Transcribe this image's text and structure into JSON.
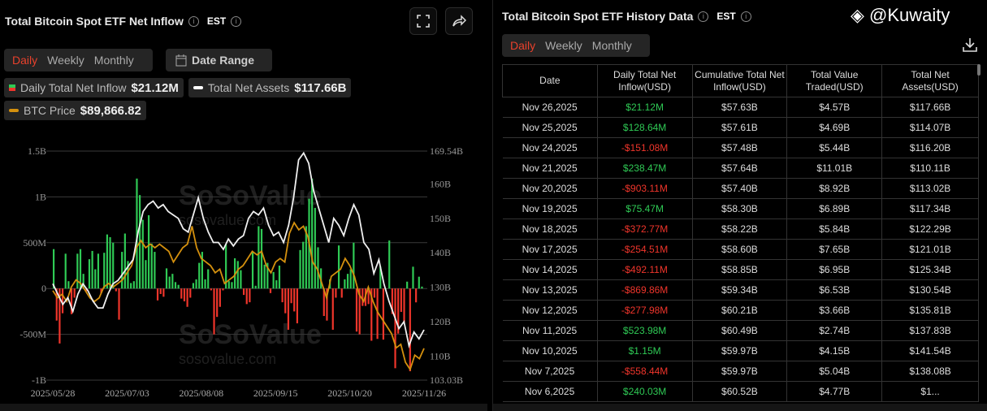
{
  "left": {
    "title": "Total Bitcoin Spot ETF Net Inflow",
    "tz": "EST",
    "tabs": [
      "Daily",
      "Weekly",
      "Monthly"
    ],
    "date_range": "Date Range",
    "legend": {
      "inflow_label": "Daily Total Net Inflow",
      "inflow_value": "$21.12M",
      "assets_label": "Total Net Assets",
      "assets_value": "$117.66B",
      "btc_label": "BTC Price",
      "btc_value": "$89,866.82"
    },
    "watermark": "SoSoValue",
    "watermark_url": "sosovalue.com"
  },
  "chart_data": {
    "type": "bar+line",
    "x_ticks": [
      "2025/05/28",
      "2025/07/03",
      "2025/08/08",
      "2025/09/15",
      "2025/10/20",
      "2025/11/26"
    ],
    "left_ticks": [
      "1.5B",
      "1B",
      "500M",
      "0",
      "-500M",
      "-1B"
    ],
    "right_ticks": [
      "169.54B",
      "160B",
      "150B",
      "140B",
      "130B",
      "120B",
      "110B",
      "103.03B"
    ],
    "ylim_left_millions": [
      -1000,
      1500
    ],
    "ylim_right_billions": [
      103.03,
      169.54
    ],
    "btc_range_thousands": [
      81,
      145
    ],
    "colors": {
      "pos": "#2fca55",
      "neg": "#f0352b",
      "assets": "#f0f0f0",
      "btc": "#d4900e"
    },
    "inflow_millions": [
      430,
      -350,
      -600,
      -270,
      380,
      80,
      -280,
      -100,
      380,
      430,
      160,
      -30,
      320,
      410,
      210,
      380,
      -50,
      390,
      590,
      560,
      500,
      -30,
      -340,
      400,
      600,
      300,
      60,
      80,
      1200,
      1020,
      750,
      310,
      800,
      490,
      400,
      -130,
      -60,
      -90,
      220,
      130,
      160,
      70,
      40,
      -110,
      -140,
      -200,
      -100,
      60,
      100,
      280,
      400,
      100,
      210,
      -20,
      -500,
      -310,
      -200,
      -20,
      480,
      80,
      70,
      330,
      300,
      200,
      -70,
      -170,
      -150,
      400,
      30,
      680,
      650,
      260,
      280,
      -50,
      180,
      90,
      250,
      -150,
      -270,
      -450,
      -160,
      -250,
      -380,
      420,
      510,
      680,
      980,
      1200,
      880,
      450,
      220,
      -300,
      -350,
      100,
      -450,
      -100,
      470,
      -100,
      100,
      160,
      210,
      500,
      -470,
      -500,
      -190,
      -190,
      -170,
      -570,
      -100,
      -550,
      240,
      -558,
      1.15,
      524,
      -278,
      -870,
      -492,
      -255,
      -373,
      75,
      -903,
      238,
      -151,
      129,
      21
    ],
    "total_net_assets_billions": [
      131,
      128,
      125,
      127,
      123,
      128,
      131,
      129,
      126,
      124,
      124,
      128,
      131,
      132,
      134,
      136,
      138,
      146,
      152,
      154,
      155,
      153,
      154,
      152,
      151,
      150,
      147,
      146,
      151,
      156,
      150,
      146,
      143,
      143,
      141,
      144,
      142,
      144,
      145,
      150,
      152,
      151,
      153,
      148,
      145,
      146,
      143,
      148,
      156,
      167,
      169,
      166,
      158,
      153,
      148,
      143,
      150,
      148,
      145,
      150,
      154,
      151,
      143,
      141,
      134,
      138,
      131,
      126,
      122,
      118,
      120,
      113,
      117,
      115,
      117.66
    ],
    "btc_price_thousands": [
      106,
      104,
      105,
      103,
      107,
      109,
      108,
      106,
      104,
      103,
      104,
      107,
      108,
      107,
      108,
      109,
      111,
      113,
      118,
      120,
      118,
      119,
      118,
      119,
      118,
      117,
      114,
      116,
      118,
      119,
      124,
      118,
      115,
      114,
      113,
      111,
      112,
      108,
      109,
      110,
      112,
      113,
      115,
      117,
      116,
      117,
      113,
      111,
      114,
      115,
      114,
      122,
      125,
      123,
      124,
      121,
      114,
      112,
      108,
      104,
      110,
      111,
      112,
      115,
      113,
      110,
      105,
      103,
      107,
      103,
      100,
      98,
      96,
      94,
      90,
      91,
      86,
      84,
      88,
      87,
      89.87
    ]
  },
  "right": {
    "title": "Total Bitcoin Spot ETF History Data",
    "tz": "EST",
    "tabs": [
      "Daily",
      "Weekly",
      "Monthly"
    ],
    "headers": [
      "Date",
      "Daily Total Net Inflow(USD)",
      "Cumulative Total Net Inflow(USD)",
      "Total Value Traded(USD)",
      "Total Net Assets(USD)"
    ],
    "rows": [
      [
        "Nov 26,2025",
        "$21.12M",
        "$57.63B",
        "$4.57B",
        "$117.66B"
      ],
      [
        "Nov 25,2025",
        "$128.64M",
        "$57.61B",
        "$4.69B",
        "$114.07B"
      ],
      [
        "Nov 24,2025",
        "-$151.08M",
        "$57.48B",
        "$5.44B",
        "$116.20B"
      ],
      [
        "Nov 21,2025",
        "$238.47M",
        "$57.64B",
        "$11.01B",
        "$110.11B"
      ],
      [
        "Nov 20,2025",
        "-$903.11M",
        "$57.40B",
        "$8.92B",
        "$113.02B"
      ],
      [
        "Nov 19,2025",
        "$75.47M",
        "$58.30B",
        "$6.89B",
        "$117.34B"
      ],
      [
        "Nov 18,2025",
        "-$372.77M",
        "$58.22B",
        "$5.84B",
        "$122.29B"
      ],
      [
        "Nov 17,2025",
        "-$254.51M",
        "$58.60B",
        "$7.65B",
        "$121.01B"
      ],
      [
        "Nov 14,2025",
        "-$492.11M",
        "$58.85B",
        "$6.95B",
        "$125.34B"
      ],
      [
        "Nov 13,2025",
        "-$869.86M",
        "$59.34B",
        "$6.53B",
        "$130.54B"
      ],
      [
        "Nov 12,2025",
        "-$277.98M",
        "$60.21B",
        "$3.66B",
        "$135.81B"
      ],
      [
        "Nov 11,2025",
        "$523.98M",
        "$60.49B",
        "$2.74B",
        "$137.83B"
      ],
      [
        "Nov 10,2025",
        "$1.15M",
        "$59.97B",
        "$4.15B",
        "$141.54B"
      ],
      [
        "Nov 7,2025",
        "-$558.44M",
        "$59.97B",
        "$5.04B",
        "$138.08B"
      ],
      [
        "Nov 6,2025",
        "$240.03M",
        "$60.52B",
        "$4.77B",
        "$1..."
      ]
    ],
    "overlay": "@Kuwaity"
  }
}
